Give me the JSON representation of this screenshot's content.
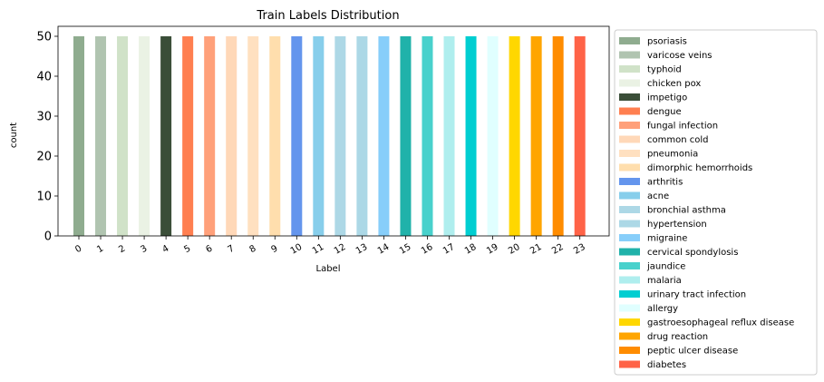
{
  "chart_data": {
    "type": "bar",
    "title": "Train Labels Distribution",
    "xlabel": "Label",
    "ylabel": "count",
    "ylim": [
      0,
      52.5
    ],
    "yticks": [
      0,
      10,
      20,
      30,
      40,
      50
    ],
    "categories": [
      "0",
      "1",
      "2",
      "3",
      "4",
      "5",
      "6",
      "7",
      "8",
      "9",
      "10",
      "11",
      "12",
      "13",
      "14",
      "15",
      "16",
      "17",
      "18",
      "19",
      "20",
      "21",
      "22",
      "23"
    ],
    "values": [
      50,
      50,
      50,
      50,
      50,
      50,
      50,
      50,
      50,
      50,
      50,
      50,
      50,
      50,
      50,
      50,
      50,
      50,
      50,
      50,
      50,
      50,
      50,
      50
    ],
    "grid": false,
    "legend_placement": "outside-right",
    "series": [
      {
        "name": "psoriasis",
        "color": "#8fac8f"
      },
      {
        "name": "varicose veins",
        "color": "#b0c4b0"
      },
      {
        "name": "typhoid",
        "color": "#d0e2c8"
      },
      {
        "name": "chicken pox",
        "color": "#eaf2e4"
      },
      {
        "name": "impetigo",
        "color": "#3a4e38"
      },
      {
        "name": "dengue",
        "color": "#ff7f50"
      },
      {
        "name": "fungal infection",
        "color": "#ffa07a"
      },
      {
        "name": "common cold",
        "color": "#ffd8b8"
      },
      {
        "name": "pneumonia",
        "color": "#ffe0c0"
      },
      {
        "name": "dimorphic hemorrhoids",
        "color": "#ffdead"
      },
      {
        "name": "arthritis",
        "color": "#6495ed"
      },
      {
        "name": "acne",
        "color": "#87ceeb"
      },
      {
        "name": "bronchial asthma",
        "color": "#add8e6"
      },
      {
        "name": "hypertension",
        "color": "#acd8e6"
      },
      {
        "name": "migraine",
        "color": "#87cefa"
      },
      {
        "name": "cervical spondylosis",
        "color": "#20b2aa"
      },
      {
        "name": "jaundice",
        "color": "#48d1cc"
      },
      {
        "name": "malaria",
        "color": "#afeeee"
      },
      {
        "name": "urinary tract infection",
        "color": "#00ced1"
      },
      {
        "name": "allergy",
        "color": "#e0ffff"
      },
      {
        "name": "gastroesophageal reflux disease",
        "color": "#ffd700"
      },
      {
        "name": "drug reaction",
        "color": "#ffa500"
      },
      {
        "name": "peptic ulcer disease",
        "color": "#ff8c00"
      },
      {
        "name": "diabetes",
        "color": "#ff6347"
      }
    ]
  }
}
